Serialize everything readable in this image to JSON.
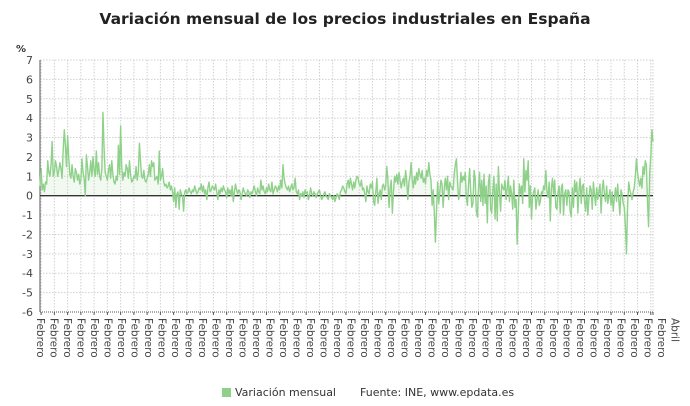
{
  "chart_data": {
    "type": "line",
    "title": "Variación mensual de los precios industriales en España",
    "ylabel": "%",
    "ylim": [
      -6,
      7
    ],
    "yticks": [
      7,
      6,
      5,
      4,
      3,
      2,
      1,
      0,
      -1,
      -2,
      -3,
      -4,
      -5,
      -6
    ],
    "grid": true,
    "legend_position": "bottom",
    "x_tick_labels": [
      "Febrero",
      "Febrero",
      "Febrero",
      "Febrero",
      "Febrero",
      "Febrero",
      "Febrero",
      "Febrero",
      "Febrero",
      "Febrero",
      "Febrero",
      "Febrero",
      "Febrero",
      "Febrero",
      "Febrero",
      "Febrero",
      "Febrero",
      "Febrero",
      "Febrero",
      "Febrero",
      "Febrero",
      "Febrero",
      "Febrero",
      "Febrero",
      "Febrero",
      "Febrero",
      "Febrero",
      "Febrero",
      "Febrero",
      "Febrero",
      "Febrero",
      "Febrero",
      "Febrero",
      "Febrero",
      "Febrero",
      "Febrero",
      "Febrero",
      "Febrero",
      "Febrero",
      "Febrero",
      "Febrero",
      "Febrero",
      "Febrero",
      "Febrero",
      "Febrero",
      "Febrero",
      "Febrero",
      "Abril"
    ],
    "series": [
      {
        "name": "Variación mensual",
        "color": "#8fd18a",
        "values": [
          0.5,
          1.4,
          0.3,
          0.6,
          0.2,
          0.7,
          0.6,
          1.8,
          1.2,
          1.0,
          1.6,
          2.8,
          1.0,
          1.2,
          1.8,
          1.5,
          1.0,
          1.3,
          1.7,
          1.4,
          0.9,
          2.4,
          3.4,
          2.6,
          1.5,
          3.1,
          2.0,
          1.1,
          0.9,
          1.6,
          1.0,
          0.7,
          1.4,
          1.2,
          0.8,
          1.1,
          0.6,
          0.8,
          1.9,
          1.2,
          0.9,
          0.0,
          2.1,
          1.5,
          0.8,
          1.2,
          1.8,
          1.0,
          2.0,
          1.3,
          1.0,
          2.3,
          1.1,
          1.7,
          1.0,
          0.8,
          1.4,
          4.3,
          2.5,
          1.2,
          1.0,
          0.8,
          1.3,
          1.6,
          0.9,
          1.8,
          1.1,
          0.7,
          0.6,
          1.0,
          0.8,
          2.6,
          1.1,
          3.6,
          1.5,
          0.8,
          1.2,
          1.0,
          1.6,
          1.4,
          0.9,
          1.8,
          1.1,
          0.7,
          0.8,
          1.0,
          0.9,
          1.5,
          0.8,
          1.2,
          2.7,
          1.8,
          1.0,
          0.9,
          1.3,
          0.8,
          0.7,
          0.9,
          1.1,
          1.6,
          1.0,
          1.8,
          1.5,
          1.7,
          0.8,
          0.9,
          1.0,
          0.6,
          2.3,
          0.8,
          1.0,
          1.4,
          0.7,
          0.5,
          0.6,
          0.4,
          0.5,
          0.7,
          0.3,
          0.5,
          0.2,
          -0.3,
          0.4,
          -0.6,
          0.1,
          0.2,
          -0.7,
          0.3,
          0.1,
          0.0,
          -0.8,
          0.2,
          0.3,
          0.1,
          0.2,
          0.4,
          0.2,
          0.1,
          0.3,
          0.2,
          0.5,
          0.3,
          0.1,
          0.2,
          0.4,
          0.3,
          0.6,
          0.2,
          0.5,
          0.1,
          0.3,
          -0.2,
          0.4,
          0.7,
          0.2,
          0.3,
          0.5,
          0.4,
          0.3,
          0.6,
          0.2,
          -0.2,
          0.3,
          0.1,
          0.4,
          0.2,
          0.5,
          0.3,
          0.2,
          -0.1,
          0.4,
          0.1,
          0.3,
          0.0,
          0.5,
          -0.3,
          0.2,
          0.6,
          0.3,
          0.1,
          0.3,
          0.2,
          -0.2,
          0.1,
          0.4,
          0.2,
          0.1,
          0.0,
          0.3,
          0.2,
          -0.1,
          0.2,
          0.1,
          0.3,
          0.5,
          0.2,
          0.0,
          0.4,
          0.2,
          0.1,
          0.8,
          0.3,
          0.5,
          0.2,
          0.1,
          0.4,
          0.2,
          0.6,
          0.3,
          0.2,
          0.7,
          0.1,
          0.3,
          0.5,
          0.4,
          0.2,
          0.5,
          0.3,
          0.8,
          0.4,
          1.6,
          0.9,
          0.6,
          0.4,
          0.3,
          0.5,
          0.2,
          0.4,
          0.6,
          0.3,
          0.4,
          0.9,
          0.2,
          0.1,
          0.3,
          -0.2,
          0.1,
          0.0,
          0.2,
          -0.1,
          0.3,
          0.1,
          0.2,
          -0.2,
          0.0,
          0.4,
          0.1,
          0.0,
          0.2,
          0.1,
          -0.1,
          0.1,
          0.2,
          0.3,
          0.0,
          -0.2,
          -0.1,
          0.1,
          0.2,
          0.0,
          -0.1,
          -0.2,
          0.1,
          0.0,
          -0.1,
          -0.2,
          0.0,
          -0.3,
          -0.1,
          0.1,
          0.0,
          -0.2,
          0.2,
          0.3,
          0.5,
          0.4,
          0.2,
          0.1,
          0.6,
          0.8,
          0.4,
          0.9,
          0.6,
          0.3,
          0.7,
          0.4,
          0.8,
          1.0,
          0.9,
          0.6,
          0.5,
          0.8,
          0.3,
          0.4,
          0.1,
          -0.3,
          0.5,
          0.2,
          0.1,
          0.6,
          0.4,
          0.7,
          -0.3,
          -0.5,
          0.2,
          0.9,
          -0.4,
          0.1,
          0.3,
          -0.2,
          0.5,
          0.6,
          0.3,
          0.5,
          1.5,
          0.8,
          -0.6,
          0.4,
          0.8,
          -0.9,
          0.2,
          1.0,
          0.7,
          1.1,
          0.6,
          1.2,
          0.8,
          0.4,
          0.7,
          0.9,
          0.5,
          1.3,
          0.8,
          -0.2,
          0.7,
          1.0,
          1.7,
          0.8,
          0.4,
          1.0,
          0.6,
          1.2,
          0.8,
          1.4,
          1.1,
          0.9,
          1.3,
          0.7,
          0.9,
          0.6,
          1.3,
          1.0,
          1.7,
          1.1,
          0.8,
          -0.5,
          0.3,
          -0.9,
          -2.4,
          -0.8,
          0.7,
          -0.4,
          0.2,
          0.8,
          0.6,
          -0.6,
          0.4,
          0.9,
          0.3,
          1.0,
          -0.2,
          0.7,
          0.5,
          0.4,
          0.3,
          1.1,
          1.6,
          1.9,
          0.8,
          -0.2,
          0.1,
          1.2,
          0.7,
          1.0,
          0.8,
          1.2,
          -0.1,
          -0.5,
          0.6,
          1.4,
          0.2,
          -0.6,
          -0.4,
          1.3,
          0.9,
          -0.8,
          -1.1,
          0.4,
          1.2,
          -0.3,
          0.8,
          -0.5,
          1.1,
          -0.4,
          0.5,
          -1.4,
          0.7,
          1.1,
          -0.7,
          -0.9,
          0.3,
          1.0,
          -1.2,
          0.6,
          -1.3,
          1.5,
          0.2,
          -0.8,
          0.6,
          0.4,
          0.3,
          0.8,
          -0.2,
          0.4,
          1.0,
          -0.3,
          0.5,
          0.1,
          -0.7,
          0.8,
          -0.6,
          -0.2,
          -2.5,
          -0.9,
          0.6,
          0.1,
          0.5,
          -0.4,
          1.9,
          0.2,
          1.3,
          0.8,
          1.8,
          -0.6,
          0.5,
          -1.2,
          0.0,
          0.2,
          0.4,
          -0.7,
          -0.2,
          0.3,
          -0.5,
          -0.3,
          0.2,
          0.1,
          0.5,
          0.3,
          1.3,
          0.2,
          -0.1,
          0.7,
          -1.3,
          0.4,
          0.9,
          0.1,
          0.8,
          -0.6,
          -0.7,
          0.2,
          0.5,
          -0.9,
          0.4,
          0.6,
          -1.0,
          0.1,
          0.3,
          -0.5,
          0.3,
          0.2,
          -0.8,
          -1.1,
          0.4,
          -0.6,
          0.8,
          0.2,
          0.7,
          -0.9,
          0.3,
          0.9,
          -0.4,
          0.5,
          0.6,
          -0.3,
          -0.8,
          0.4,
          -1.0,
          -0.2,
          0.5,
          0.3,
          -0.7,
          0.7,
          0.1,
          -0.5,
          0.4,
          -0.2,
          0.2,
          0.6,
          -0.9,
          0.3,
          0.8,
          0.1,
          -0.3,
          0.5,
          -0.4,
          -0.1,
          0.3,
          -0.5,
          0.2,
          -0.8,
          -0.1,
          0.4,
          -0.3,
          0.6,
          -0.2,
          -1.0,
          0.3,
          0.1,
          -0.4,
          -0.6,
          -1.6,
          -3.0,
          -0.6,
          0.7,
          0.3,
          0.1,
          -0.2,
          0.2,
          0.4,
          1.0,
          1.9,
          1.2,
          0.8,
          0.5,
          0.9,
          0.4,
          1.5,
          1.1,
          1.8,
          1.6,
          -0.3,
          -1.6,
          1.2,
          2.0,
          3.4,
          2.8
        ]
      }
    ]
  },
  "legend": {
    "label": "Variación mensual"
  },
  "source": "Fuente: INE, www.epdata.es"
}
